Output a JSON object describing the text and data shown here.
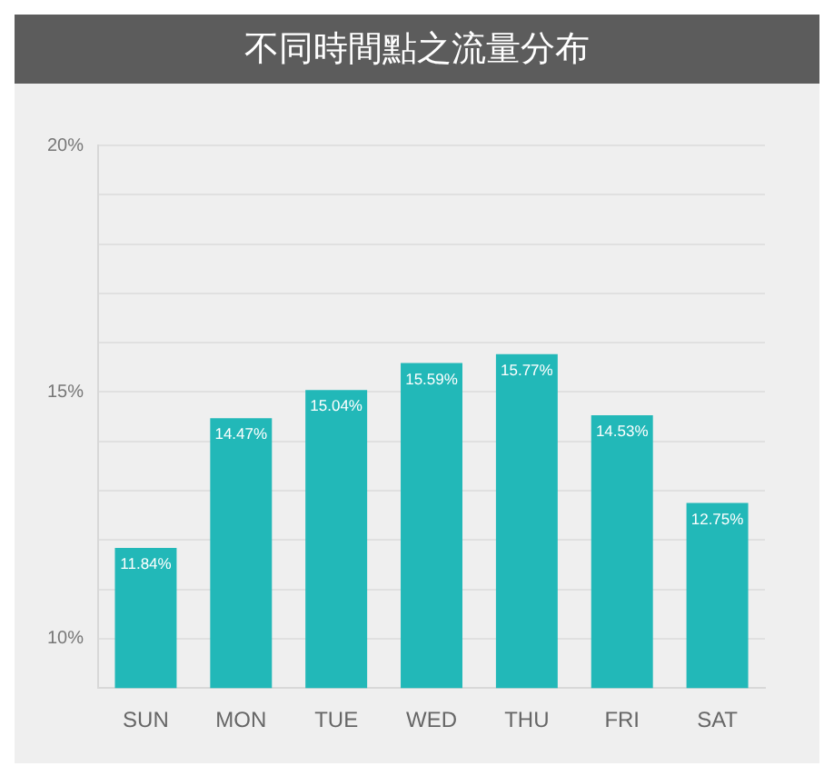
{
  "chart_data": {
    "type": "bar",
    "title": "不同時間點之流量分布",
    "categories": [
      "SUN",
      "MON",
      "TUE",
      "WED",
      "THU",
      "FRI",
      "SAT"
    ],
    "values": [
      11.84,
      14.47,
      15.04,
      15.59,
      15.77,
      14.53,
      12.75
    ],
    "value_labels": [
      "11.84%",
      "14.47%",
      "15.04%",
      "15.59%",
      "15.77%",
      "14.53%",
      "12.75%"
    ],
    "color": "#22b8b8",
    "ylim": [
      9,
      20
    ],
    "yticks": [
      {
        "value": 10,
        "label": "10%"
      },
      {
        "value": 11,
        "label": null
      },
      {
        "value": 12,
        "label": null
      },
      {
        "value": 13,
        "label": null
      },
      {
        "value": 14,
        "label": null
      },
      {
        "value": 15,
        "label": "15%"
      },
      {
        "value": 16,
        "label": null
      },
      {
        "value": 17,
        "label": null
      },
      {
        "value": 18,
        "label": null
      },
      {
        "value": 19,
        "label": null
      },
      {
        "value": 20,
        "label": "20%"
      }
    ],
    "grid": "y",
    "legend": false
  }
}
